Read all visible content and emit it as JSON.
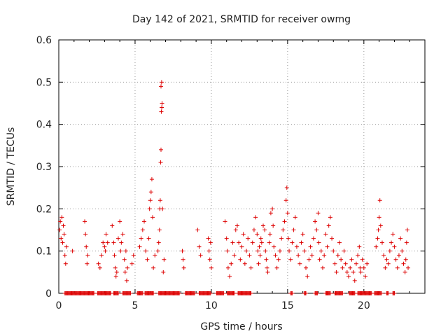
{
  "chart_data": {
    "type": "scatter",
    "title": "Day 142 of 2021, SRMTID for receiver owmg",
    "xlabel": "GPS time / hours",
    "ylabel": "SRMTID / TECUs",
    "xlim": [
      0,
      24
    ],
    "ylim": [
      0,
      0.6
    ],
    "xticks": [
      0,
      5,
      10,
      15,
      20
    ],
    "yticks": [
      0,
      0.1,
      0.2,
      0.3,
      0.4,
      0.5,
      0.6
    ],
    "grid": true,
    "series": [
      {
        "name": "SRMTID",
        "color": "#dd0000",
        "marker": "+",
        "points": [
          [
            0.05,
            0.15
          ],
          [
            0.1,
            0.17
          ],
          [
            0.15,
            0.13
          ],
          [
            0.2,
            0.18
          ],
          [
            0.25,
            0.12
          ],
          [
            0.3,
            0.16
          ],
          [
            0.35,
            0.14
          ],
          [
            0.4,
            0.09
          ],
          [
            0.45,
            0.07
          ],
          [
            0.5,
            0.11
          ],
          [
            0.9,
            0.1
          ],
          [
            1.7,
            0.17
          ],
          [
            1.75,
            0.14
          ],
          [
            1.8,
            0.11
          ],
          [
            1.85,
            0.07
          ],
          [
            1.9,
            0.09
          ],
          [
            2.6,
            0.07
          ],
          [
            2.7,
            0.06
          ],
          [
            2.8,
            0.09
          ],
          [
            2.9,
            0.12
          ],
          [
            3.0,
            0.11
          ],
          [
            3.05,
            0.1
          ],
          [
            3.1,
            0.14
          ],
          [
            3.2,
            0.12
          ],
          [
            3.5,
            0.16
          ],
          [
            3.6,
            0.12
          ],
          [
            3.65,
            0.09
          ],
          [
            3.7,
            0.06
          ],
          [
            3.75,
            0.04
          ],
          [
            3.8,
            0.05
          ],
          [
            3.9,
            0.13
          ],
          [
            4.0,
            0.17
          ],
          [
            4.05,
            0.1
          ],
          [
            4.1,
            0.12
          ],
          [
            4.2,
            0.14
          ],
          [
            4.3,
            0.08
          ],
          [
            4.35,
            0.05
          ],
          [
            4.4,
            0.1
          ],
          [
            4.45,
            0.03
          ],
          [
            4.5,
            0.06
          ],
          [
            4.8,
            0.07
          ],
          [
            4.9,
            0.09
          ],
          [
            5.3,
            0.11
          ],
          [
            5.4,
            0.13
          ],
          [
            5.5,
            0.15
          ],
          [
            5.6,
            0.17
          ],
          [
            5.7,
            0.1
          ],
          [
            5.8,
            0.08
          ],
          [
            5.9,
            0.13
          ],
          [
            5.95,
            0.2
          ],
          [
            6.0,
            0.22
          ],
          [
            6.05,
            0.24
          ],
          [
            6.1,
            0.27
          ],
          [
            6.15,
            0.18
          ],
          [
            6.2,
            0.06
          ],
          [
            6.3,
            0.09
          ],
          [
            6.5,
            0.1
          ],
          [
            6.55,
            0.12
          ],
          [
            6.6,
            0.15
          ],
          [
            6.62,
            0.2
          ],
          [
            6.65,
            0.22
          ],
          [
            6.68,
            0.31
          ],
          [
            6.7,
            0.34
          ],
          [
            6.72,
            0.43
          ],
          [
            6.75,
            0.44
          ],
          [
            6.77,
            0.45
          ],
          [
            6.7,
            0.49
          ],
          [
            6.74,
            0.5
          ],
          [
            6.8,
            0.2
          ],
          [
            6.85,
            0.05
          ],
          [
            6.9,
            0.08
          ],
          [
            8.1,
            0.1
          ],
          [
            8.15,
            0.08
          ],
          [
            8.2,
            0.06
          ],
          [
            9.1,
            0.15
          ],
          [
            9.2,
            0.11
          ],
          [
            9.3,
            0.09
          ],
          [
            9.8,
            0.13
          ],
          [
            9.85,
            0.1
          ],
          [
            9.9,
            0.08
          ],
          [
            9.95,
            0.12
          ],
          [
            10.0,
            0.06
          ],
          [
            10.9,
            0.17
          ],
          [
            11.0,
            0.13
          ],
          [
            11.05,
            0.1
          ],
          [
            11.1,
            0.06
          ],
          [
            11.2,
            0.04
          ],
          [
            11.3,
            0.07
          ],
          [
            11.4,
            0.12
          ],
          [
            11.5,
            0.09
          ],
          [
            11.6,
            0.15
          ],
          [
            11.7,
            0.16
          ],
          [
            11.8,
            0.12
          ],
          [
            11.9,
            0.08
          ],
          [
            12.0,
            0.11
          ],
          [
            12.1,
            0.14
          ],
          [
            12.2,
            0.07
          ],
          [
            12.3,
            0.1
          ],
          [
            12.4,
            0.13
          ],
          [
            12.5,
            0.09
          ],
          [
            12.6,
            0.06
          ],
          [
            12.7,
            0.12
          ],
          [
            12.8,
            0.15
          ],
          [
            12.9,
            0.18
          ],
          [
            13.0,
            0.14
          ],
          [
            13.05,
            0.1
          ],
          [
            13.1,
            0.07
          ],
          [
            13.15,
            0.11
          ],
          [
            13.2,
            0.09
          ],
          [
            13.25,
            0.13
          ],
          [
            13.3,
            0.12
          ],
          [
            13.4,
            0.16
          ],
          [
            13.5,
            0.15
          ],
          [
            13.55,
            0.1
          ],
          [
            13.6,
            0.08
          ],
          [
            13.65,
            0.06
          ],
          [
            13.7,
            0.05
          ],
          [
            13.8,
            0.12
          ],
          [
            13.85,
            0.14
          ],
          [
            13.9,
            0.19
          ],
          [
            14.0,
            0.2
          ],
          [
            14.05,
            0.16
          ],
          [
            14.1,
            0.11
          ],
          [
            14.2,
            0.09
          ],
          [
            14.3,
            0.06
          ],
          [
            14.4,
            0.08
          ],
          [
            14.5,
            0.1
          ],
          [
            14.6,
            0.13
          ],
          [
            14.7,
            0.15
          ],
          [
            14.8,
            0.17
          ],
          [
            14.9,
            0.22
          ],
          [
            14.95,
            0.25
          ],
          [
            15.0,
            0.19
          ],
          [
            15.05,
            0.13
          ],
          [
            15.1,
            0.1
          ],
          [
            15.2,
            0.08
          ],
          [
            15.3,
            0.12
          ],
          [
            15.4,
            0.15
          ],
          [
            15.5,
            0.18
          ],
          [
            15.6,
            0.11
          ],
          [
            15.7,
            0.09
          ],
          [
            15.8,
            0.07
          ],
          [
            15.9,
            0.12
          ],
          [
            16.0,
            0.14
          ],
          [
            16.1,
            0.1
          ],
          [
            16.2,
            0.06
          ],
          [
            16.3,
            0.04
          ],
          [
            16.4,
            0.08
          ],
          [
            16.5,
            0.11
          ],
          [
            16.6,
            0.09
          ],
          [
            16.7,
            0.13
          ],
          [
            16.8,
            0.17
          ],
          [
            16.9,
            0.15
          ],
          [
            17.0,
            0.19
          ],
          [
            17.05,
            0.12
          ],
          [
            17.1,
            0.08
          ],
          [
            17.2,
            0.1
          ],
          [
            17.3,
            0.06
          ],
          [
            17.4,
            0.09
          ],
          [
            17.5,
            0.14
          ],
          [
            17.6,
            0.11
          ],
          [
            17.7,
            0.16
          ],
          [
            17.8,
            0.18
          ],
          [
            17.9,
            0.13
          ],
          [
            18.0,
            0.1
          ],
          [
            18.1,
            0.07
          ],
          [
            18.2,
            0.05
          ],
          [
            18.3,
            0.09
          ],
          [
            18.4,
            0.12
          ],
          [
            18.5,
            0.08
          ],
          [
            18.6,
            0.06
          ],
          [
            18.7,
            0.1
          ],
          [
            18.8,
            0.07
          ],
          [
            18.9,
            0.05
          ],
          [
            19.0,
            0.04
          ],
          [
            19.1,
            0.06
          ],
          [
            19.2,
            0.08
          ],
          [
            19.3,
            0.05
          ],
          [
            19.4,
            0.03
          ],
          [
            19.5,
            0.07
          ],
          [
            19.6,
            0.09
          ],
          [
            19.7,
            0.11
          ],
          [
            19.75,
            0.06
          ],
          [
            19.8,
            0.05
          ],
          [
            19.9,
            0.08
          ],
          [
            20.0,
            0.06
          ],
          [
            20.1,
            0.04
          ],
          [
            20.2,
            0.07
          ],
          [
            20.8,
            0.11
          ],
          [
            20.9,
            0.13
          ],
          [
            20.95,
            0.15
          ],
          [
            21.0,
            0.18
          ],
          [
            21.05,
            0.22
          ],
          [
            21.1,
            0.16
          ],
          [
            21.2,
            0.12
          ],
          [
            21.3,
            0.09
          ],
          [
            21.4,
            0.06
          ],
          [
            21.5,
            0.08
          ],
          [
            21.6,
            0.07
          ],
          [
            21.7,
            0.1
          ],
          [
            21.8,
            0.12
          ],
          [
            21.9,
            0.14
          ],
          [
            22.0,
            0.11
          ],
          [
            22.1,
            0.08
          ],
          [
            22.2,
            0.06
          ],
          [
            22.3,
            0.09
          ],
          [
            22.4,
            0.13
          ],
          [
            22.5,
            0.1
          ],
          [
            22.6,
            0.07
          ],
          [
            22.7,
            0.05
          ],
          [
            22.75,
            0.08
          ],
          [
            22.8,
            0.12
          ],
          [
            22.85,
            0.15
          ],
          [
            22.9,
            0.06
          ]
        ],
        "zero_ranges": [
          [
            0.4,
            2.3
          ],
          [
            2.55,
            3.4
          ],
          [
            3.6,
            3.9
          ],
          [
            4.2,
            4.7
          ],
          [
            5.15,
            5.5
          ],
          [
            5.65,
            6.2
          ],
          [
            6.55,
            7.9
          ],
          [
            8.3,
            8.9
          ],
          [
            9.2,
            9.95
          ],
          [
            10.35,
            10.8
          ],
          [
            11.05,
            11.5
          ],
          [
            11.75,
            12.6
          ],
          [
            15.2,
            15.3
          ],
          [
            16.1,
            16.2
          ],
          [
            16.8,
            16.95
          ],
          [
            17.5,
            17.8
          ],
          [
            18.1,
            18.6
          ],
          [
            19.05,
            19.4
          ],
          [
            19.6,
            20.5
          ],
          [
            20.7,
            21.15
          ],
          [
            21.5,
            21.6
          ],
          [
            21.9,
            22.0
          ]
        ]
      }
    ]
  }
}
